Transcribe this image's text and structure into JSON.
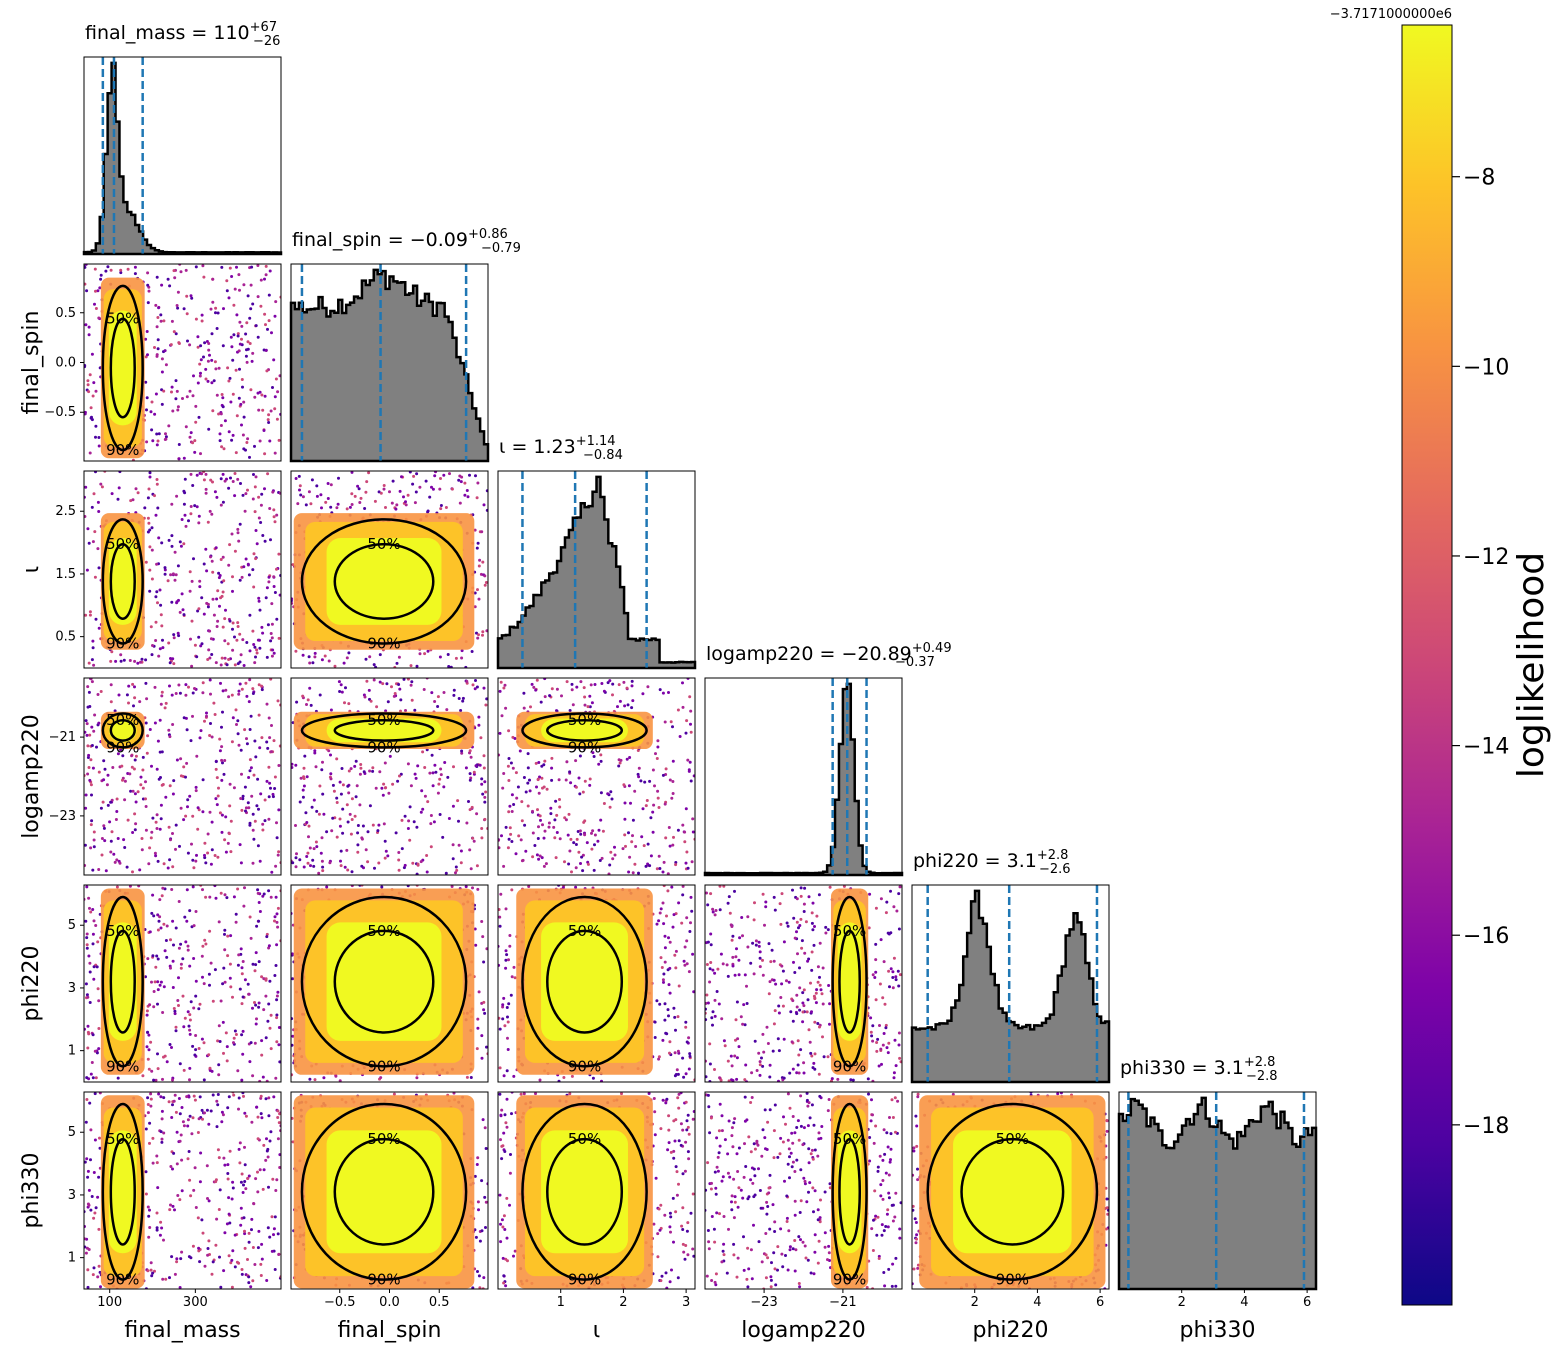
{
  "chart_data": {
    "type": "corner",
    "parameters": [
      "final_mass",
      "final_spin",
      "ι",
      "logamp220",
      "phi220",
      "phi330"
    ],
    "diagonal_titles": [
      {
        "name": "final_mass",
        "median": "110",
        "plus": "+67",
        "minus": "−26"
      },
      {
        "name": "final_spin",
        "median": "−0.09",
        "plus": "+0.86",
        "minus": "−0.79"
      },
      {
        "name": "ι",
        "median": "1.23",
        "plus": "+1.14",
        "minus": "−0.84"
      },
      {
        "name": "logamp220",
        "median": "−20.89",
        "plus": "+0.49",
        "minus": "−0.37"
      },
      {
        "name": "phi220",
        "median": "3.1",
        "plus": "+2.8",
        "minus": "−2.6"
      },
      {
        "name": "phi330",
        "median": "3.1",
        "plus": "+2.8",
        "minus": "−2.8"
      }
    ],
    "x_ticks": {
      "final_mass": [
        "100",
        "300"
      ],
      "final_spin": [
        "−0.5",
        "0.0",
        "0.5"
      ],
      "ι": [
        "1",
        "2",
        "3"
      ],
      "logamp220": [
        "−23",
        "−21"
      ],
      "phi220": [
        "2",
        "4",
        "6"
      ],
      "phi330": [
        "2",
        "4",
        "6"
      ]
    },
    "y_ticks": {
      "final_spin": [
        "0.5",
        "0.0",
        "−0.5"
      ],
      "ι": [
        "2.5",
        "1.5",
        "0.5"
      ],
      "logamp220": [
        "−21",
        "−23"
      ],
      "phi220": [
        "5",
        "3",
        "1"
      ],
      "phi330": [
        "5",
        "3",
        "1"
      ]
    },
    "ranges": {
      "final_mass": [
        40,
        500
      ],
      "final_spin": [
        -0.99,
        0.99
      ],
      "ι": [
        0,
        3.1416
      ],
      "logamp220": [
        -24.5,
        -19.5
      ],
      "phi220": [
        0,
        6.2832
      ],
      "phi330": [
        0,
        6.2832
      ]
    },
    "quantiles": {
      "final_mass": [
        84,
        110,
        177
      ],
      "final_spin": [
        -0.88,
        -0.09,
        0.77
      ],
      "ι": [
        0.39,
        1.23,
        2.37
      ],
      "logamp220": [
        -21.26,
        -20.89,
        -20.4
      ],
      "phi220": [
        0.5,
        3.1,
        5.9
      ],
      "phi330": [
        0.3,
        3.1,
        5.9
      ]
    },
    "contour_labels": [
      "50%",
      "90%"
    ],
    "colorbar": {
      "label": "loglikelihood",
      "colormap": "plasma",
      "offset_text": "−3.7171000000e6",
      "ticks": [
        "−8",
        "−10",
        "−12",
        "−14",
        "−16",
        "−18"
      ],
      "tick_values": [
        -8,
        -10,
        -12,
        -14,
        -16,
        -18
      ],
      "range": [
        -19.9,
        -6.4
      ]
    },
    "colors": {
      "hist_fill": "#808080",
      "hist_edge": "#000000",
      "quantile_line": "#1f77b4",
      "contour": "#000000"
    }
  }
}
